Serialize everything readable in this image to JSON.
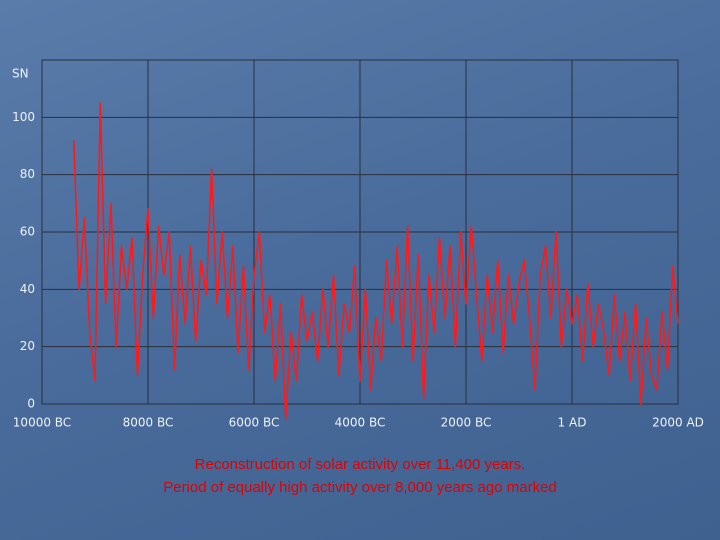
{
  "chart_data": {
    "type": "line",
    "y_label": "SN",
    "caption": [
      "Reconstruction of solar activity over 11,400 years.",
      "Period of equally high activity over 8,000 years ago marked"
    ],
    "xlim": [
      -10000,
      2000
    ],
    "xticks": [
      {
        "value": -10000,
        "label": "10000 BC"
      },
      {
        "value": -8000,
        "label": "8000 BC"
      },
      {
        "value": -6000,
        "label": "6000 BC"
      },
      {
        "value": -4000,
        "label": "4000 BC"
      },
      {
        "value": -2000,
        "label": "2000 BC"
      },
      {
        "value": 0,
        "label": "1 AD"
      },
      {
        "value": 2000,
        "label": "2000 AD"
      }
    ],
    "ylim": [
      0,
      120
    ],
    "yticks": [
      0,
      20,
      40,
      60,
      80,
      100
    ],
    "grid": true,
    "x": [
      -9400,
      -9300,
      -9200,
      -9100,
      -9000,
      -8900,
      -8800,
      -8700,
      -8600,
      -8500,
      -8400,
      -8300,
      -8200,
      -8100,
      -8000,
      -7900,
      -7800,
      -7700,
      -7600,
      -7500,
      -7400,
      -7300,
      -7200,
      -7100,
      -7000,
      -6900,
      -6800,
      -6700,
      -6600,
      -6500,
      -6400,
      -6300,
      -6200,
      -6100,
      -6000,
      -5900,
      -5800,
      -5700,
      -5600,
      -5500,
      -5400,
      -5300,
      -5200,
      -5100,
      -5000,
      -4900,
      -4800,
      -4700,
      -4600,
      -4500,
      -4400,
      -4300,
      -4200,
      -4100,
      -4000,
      -3900,
      -3800,
      -3700,
      -3600,
      -3500,
      -3400,
      -3300,
      -3200,
      -3100,
      -3000,
      -2900,
      -2800,
      -2700,
      -2600,
      -2500,
      -2400,
      -2300,
      -2200,
      -2100,
      -2000,
      -1900,
      -1800,
      -1700,
      -1600,
      -1500,
      -1400,
      -1300,
      -1200,
      -1100,
      -1000,
      -900,
      -800,
      -700,
      -600,
      -500,
      -400,
      -300,
      -200,
      -100,
      0,
      100,
      200,
      300,
      400,
      500,
      600,
      700,
      800,
      900,
      1000,
      1100,
      1200,
      1300,
      1400,
      1500,
      1600,
      1700,
      1800,
      1900,
      2000
    ],
    "series": [
      {
        "name": "SN",
        "color": "#ff1a1a",
        "values": [
          92,
          40,
          65,
          25,
          8,
          105,
          35,
          70,
          20,
          55,
          40,
          58,
          10,
          45,
          68,
          30,
          62,
          45,
          60,
          12,
          52,
          28,
          55,
          22,
          50,
          38,
          82,
          35,
          60,
          30,
          55,
          18,
          48,
          12,
          45,
          60,
          25,
          38,
          8,
          35,
          -5,
          25,
          8,
          38,
          22,
          32,
          15,
          40,
          20,
          45,
          10,
          35,
          25,
          48,
          8,
          40,
          5,
          30,
          15,
          50,
          28,
          55,
          20,
          62,
          15,
          52,
          2,
          45,
          25,
          58,
          30,
          55,
          20,
          60,
          35,
          62,
          38,
          15,
          45,
          25,
          50,
          18,
          45,
          28,
          42,
          50,
          30,
          5,
          45,
          55,
          30,
          60,
          20,
          40,
          28,
          38,
          15,
          42,
          20,
          35,
          25,
          10,
          38,
          15,
          32,
          8,
          35,
          0,
          30,
          10,
          5,
          32,
          12,
          48,
          28
        ]
      }
    ]
  }
}
